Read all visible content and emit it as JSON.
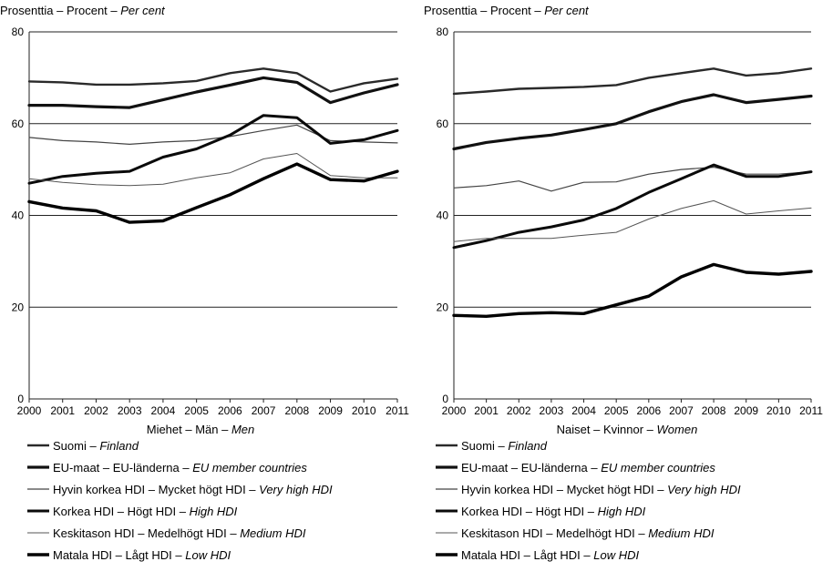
{
  "chart_data": [
    {
      "type": "line",
      "unit_label": {
        "main": "Prosenttia – Procent – ",
        "italic": "Per cent"
      },
      "xlabel": {
        "main": "Miehet – Män – ",
        "italic": "Men"
      },
      "x": [
        2000,
        2001,
        2002,
        2003,
        2004,
        2005,
        2006,
        2007,
        2008,
        2009,
        2010,
        2011
      ],
      "ylim": [
        0,
        80
      ],
      "yticks": [
        0,
        20,
        40,
        60,
        80
      ],
      "grid": "horizontal",
      "series": [
        {
          "name": "Suomi – Finland",
          "values": [
            69.2,
            69.0,
            68.5,
            68.5,
            68.8,
            69.3,
            71.0,
            72.0,
            71.0,
            67.0,
            68.8,
            69.8
          ]
        },
        {
          "name": "EU-maat – EU-länderna – EU member countries",
          "values": [
            64.0,
            64.0,
            63.7,
            63.5,
            65.2,
            66.9,
            68.4,
            70.0,
            69.0,
            64.6,
            66.7,
            68.5
          ]
        },
        {
          "name": "Hyvin korkea HDI – Mycket högt HDI – Very high HDI",
          "values": [
            57.0,
            56.3,
            56.0,
            55.5,
            56.0,
            56.3,
            57.2,
            58.5,
            59.7,
            56.3,
            56.0,
            55.8
          ]
        },
        {
          "name": "Korkea HDI – Högt HDI – High HDI",
          "values": [
            47.0,
            48.5,
            49.2,
            49.6,
            52.7,
            54.5,
            57.5,
            61.8,
            61.3,
            55.7,
            56.5,
            58.5
          ]
        },
        {
          "name": "Keskitason HDI – Medelhögt HDI – Medium HDI",
          "values": [
            48.0,
            47.2,
            46.7,
            46.5,
            46.8,
            48.2,
            49.3,
            52.3,
            53.5,
            48.7,
            48.2,
            48.2
          ]
        },
        {
          "name": "Matala HDI – Lågt HDI – Low HDI",
          "values": [
            43.0,
            41.6,
            41.0,
            38.5,
            38.8,
            41.7,
            44.5,
            48.0,
            51.2,
            47.8,
            47.5,
            49.6
          ]
        }
      ]
    },
    {
      "type": "line",
      "unit_label": {
        "main": "Prosenttia – Procent – ",
        "italic": "Per cent"
      },
      "xlabel": {
        "main": "Naiset – Kvinnor – ",
        "italic": "Women"
      },
      "x": [
        2000,
        2001,
        2002,
        2003,
        2004,
        2005,
        2006,
        2007,
        2008,
        2009,
        2010,
        2011
      ],
      "ylim": [
        0,
        80
      ],
      "yticks": [
        0,
        20,
        40,
        60,
        80
      ],
      "grid": "horizontal",
      "series": [
        {
          "name": "Suomi – Finland",
          "values": [
            66.5,
            67.0,
            67.6,
            67.8,
            68.0,
            68.4,
            70.0,
            71.0,
            72.0,
            70.5,
            71.0,
            72.0
          ]
        },
        {
          "name": "EU-maat – EU-länderna – EU member countries",
          "values": [
            54.5,
            55.9,
            56.8,
            57.5,
            58.7,
            60.0,
            62.6,
            64.8,
            66.3,
            64.6,
            65.3,
            66.0
          ]
        },
        {
          "name": "Hyvin korkea HDI – Mycket högt HDI – Very high HDI",
          "values": [
            46.0,
            46.5,
            47.5,
            45.3,
            47.2,
            47.3,
            49.0,
            50.0,
            50.5,
            49.0,
            49.0,
            49.5
          ]
        },
        {
          "name": "Korkea HDI – Högt HDI – High HDI",
          "values": [
            33.0,
            34.5,
            36.3,
            37.5,
            39.0,
            41.5,
            45.0,
            48.0,
            51.0,
            48.5,
            48.5,
            49.5
          ]
        },
        {
          "name": "Keskitason HDI – Medelhögt HDI – Medium HDI",
          "values": [
            34.3,
            35.0,
            35.0,
            35.0,
            35.7,
            36.3,
            39.2,
            41.5,
            43.2,
            40.3,
            41.0,
            41.6
          ]
        },
        {
          "name": "Matala HDI – Lågt HDI – Low HDI",
          "values": [
            18.2,
            18.0,
            18.6,
            18.8,
            18.6,
            20.5,
            22.4,
            26.6,
            29.3,
            27.6,
            27.2,
            27.8
          ]
        }
      ]
    }
  ],
  "legend": [
    {
      "main": "Suomi – ",
      "italic": "Finland"
    },
    {
      "main": "EU-maat – EU-länderna – ",
      "italic": "EU member countries"
    },
    {
      "main": "Hyvin korkea HDI – Mycket högt HDI – ",
      "italic": "Very high HDI"
    },
    {
      "main": "Korkea HDI – Högt HDI – ",
      "italic": "High HDI"
    },
    {
      "main": "Keskitason HDI – Medelhögt HDI – ",
      "italic": "Medium HDI"
    },
    {
      "main": "Matala HDI – Lågt HDI – ",
      "italic": "Low HDI"
    }
  ],
  "series_styles": [
    {
      "color": "#2a2a2a",
      "width": 2.4
    },
    {
      "color": "#111111",
      "width": 3.2
    },
    {
      "color": "#444444",
      "width": 1.2
    },
    {
      "color": "#0a0a0a",
      "width": 3.0
    },
    {
      "color": "#555555",
      "width": 1.0
    },
    {
      "color": "#000000",
      "width": 3.4
    }
  ]
}
